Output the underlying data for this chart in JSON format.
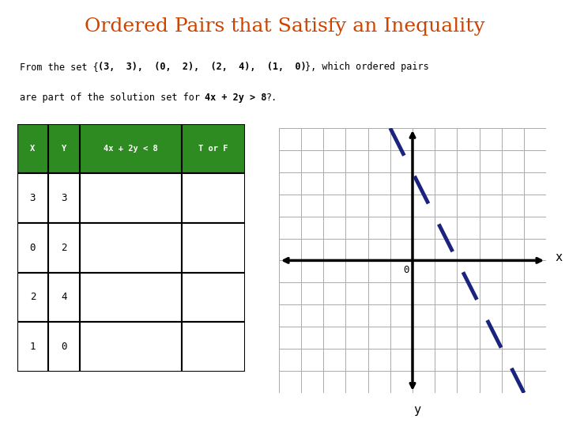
{
  "title": "Ordered Pairs that Satisfy an Inequality",
  "title_color": "#CC4400",
  "title_fontsize": 18,
  "table_header_bg": "#2E8B22",
  "table_header_text_color": "#FFFFFF",
  "table_col_headers": [
    "X",
    "Y",
    "4x + 2y < 8",
    "T or F"
  ],
  "table_rows": [
    [
      "3",
      "3",
      "",
      ""
    ],
    [
      "0",
      "2",
      "",
      ""
    ],
    [
      "2",
      "4",
      "",
      ""
    ],
    [
      "1",
      "0",
      "",
      ""
    ]
  ],
  "graph_bg": "#FFFFFF",
  "grid_color": "#AAAAAA",
  "axis_color": "#000000",
  "dashed_line_color": "#1a237e",
  "graph_xlim": [
    -6,
    6
  ],
  "graph_ylim": [
    -6,
    6
  ],
  "bg_color": "#FFFFFF"
}
